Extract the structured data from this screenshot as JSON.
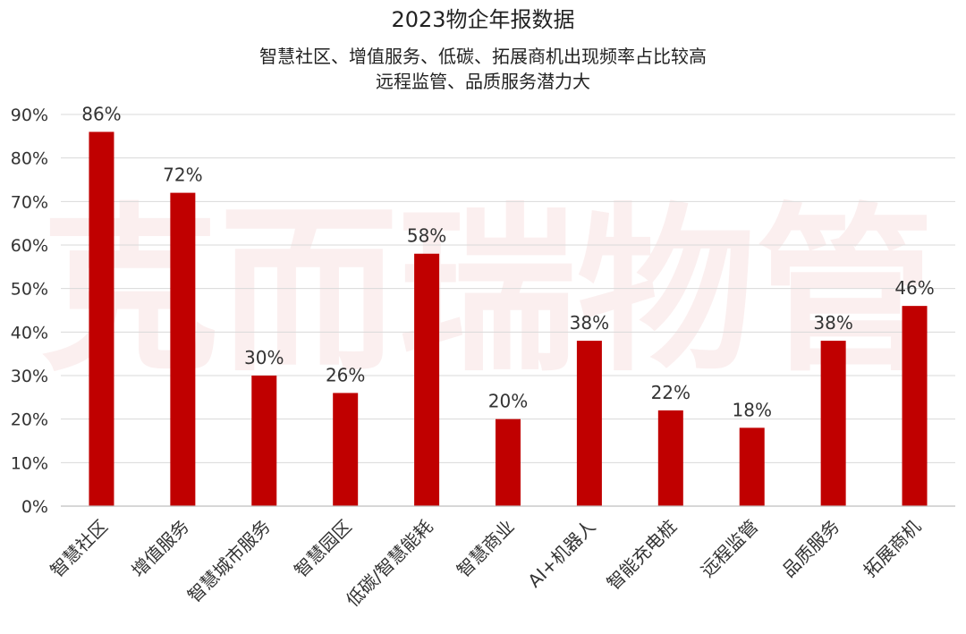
{
  "chart_data": {
    "type": "bar",
    "title": "2023物企年报数据",
    "subtitle": [
      "智慧社区、增值服务、低碳、拓展商机出现频率占比较高",
      "远程监管、品质服务潜力大"
    ],
    "categories": [
      "智慧社区",
      "增值服务",
      "智慧城市服务",
      "智慧园区",
      "低碳/智慧能耗",
      "智慧商业",
      "AI+机器人",
      "智能充电桩",
      "远程监管",
      "品质服务",
      "拓展商机"
    ],
    "values": [
      86,
      72,
      30,
      26,
      58,
      20,
      38,
      22,
      18,
      38,
      46
    ],
    "data_labels": [
      "86%",
      "72%",
      "30%",
      "26%",
      "58%",
      "20%",
      "38%",
      "22%",
      "18%",
      "38%",
      "46%"
    ],
    "yticks": [
      "0%",
      "10%",
      "20%",
      "30%",
      "40%",
      "50%",
      "60%",
      "70%",
      "80%",
      "90%"
    ],
    "ylim": [
      0,
      90
    ],
    "grid": true,
    "bar_color": "#c00000",
    "watermark": "克而瑞物管"
  }
}
